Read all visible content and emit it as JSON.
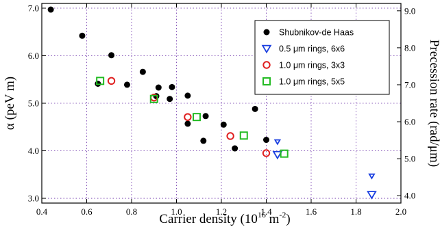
{
  "chart_data": {
    "type": "scatter",
    "xlabel_main": "Carrier density (10",
    "xlabel_exp1": "16",
    "xlabel_mid": " m",
    "xlabel_exp2": "-2",
    "xlabel_end": ")",
    "ylabel_left": "α (peV m)",
    "ylabel_right": "Precession rate (rad/μm)",
    "xlim": [
      0.4,
      2.0
    ],
    "ylim": [
      2.9,
      7.1
    ],
    "ylim_right": [
      3.8,
      9.2
    ],
    "xticks": [
      "0.4",
      "0.6",
      "0.8",
      "1.0",
      "1.2",
      "1.4",
      "1.6",
      "1.8",
      "2.0"
    ],
    "yticks": [
      "3.0",
      "4.0",
      "5.0",
      "6.0",
      "7.0"
    ],
    "yticks_right": [
      "4.0",
      "5.0",
      "6.0",
      "7.0",
      "8.0",
      "9.0"
    ],
    "grid": true,
    "legend_position": "top-right",
    "series": [
      {
        "name": "Shubnikov-de Haas",
        "marker": "filled-circle",
        "color": "#000000",
        "points": [
          [
            0.44,
            6.97
          ],
          [
            0.58,
            6.42
          ],
          [
            0.65,
            5.41
          ],
          [
            0.71,
            6.01
          ],
          [
            0.78,
            5.39
          ],
          [
            0.85,
            5.66
          ],
          [
            0.91,
            5.15
          ],
          [
            0.92,
            5.33
          ],
          [
            0.97,
            5.09
          ],
          [
            0.98,
            5.34
          ],
          [
            1.05,
            5.16
          ],
          [
            1.05,
            4.57
          ],
          [
            1.13,
            4.73
          ],
          [
            1.12,
            4.21
          ],
          [
            1.21,
            4.55
          ],
          [
            1.26,
            4.05
          ],
          [
            1.35,
            4.88
          ],
          [
            1.4,
            4.23
          ]
        ]
      },
      {
        "name": "0.5 μm rings, 6x6",
        "marker": "open-triangle-down",
        "color": "#1a3fe0",
        "points": [
          [
            1.45,
            4.19
          ],
          [
            1.45,
            3.92
          ],
          [
            1.87,
            3.47
          ],
          [
            1.87,
            3.08
          ]
        ]
      },
      {
        "name": "1.0 μm rings, 3x3",
        "marker": "open-circle",
        "color": "#e02020",
        "points": [
          [
            0.71,
            5.47
          ],
          [
            0.9,
            5.12
          ],
          [
            1.05,
            4.71
          ],
          [
            1.24,
            4.31
          ],
          [
            1.4,
            3.95
          ]
        ]
      },
      {
        "name": "1.0 μm rings, 5x5",
        "marker": "open-square",
        "color": "#22bb22",
        "points": [
          [
            0.66,
            5.47
          ],
          [
            0.9,
            5.09
          ],
          [
            1.09,
            4.71
          ],
          [
            1.3,
            4.32
          ],
          [
            1.48,
            3.94
          ]
        ]
      }
    ]
  }
}
